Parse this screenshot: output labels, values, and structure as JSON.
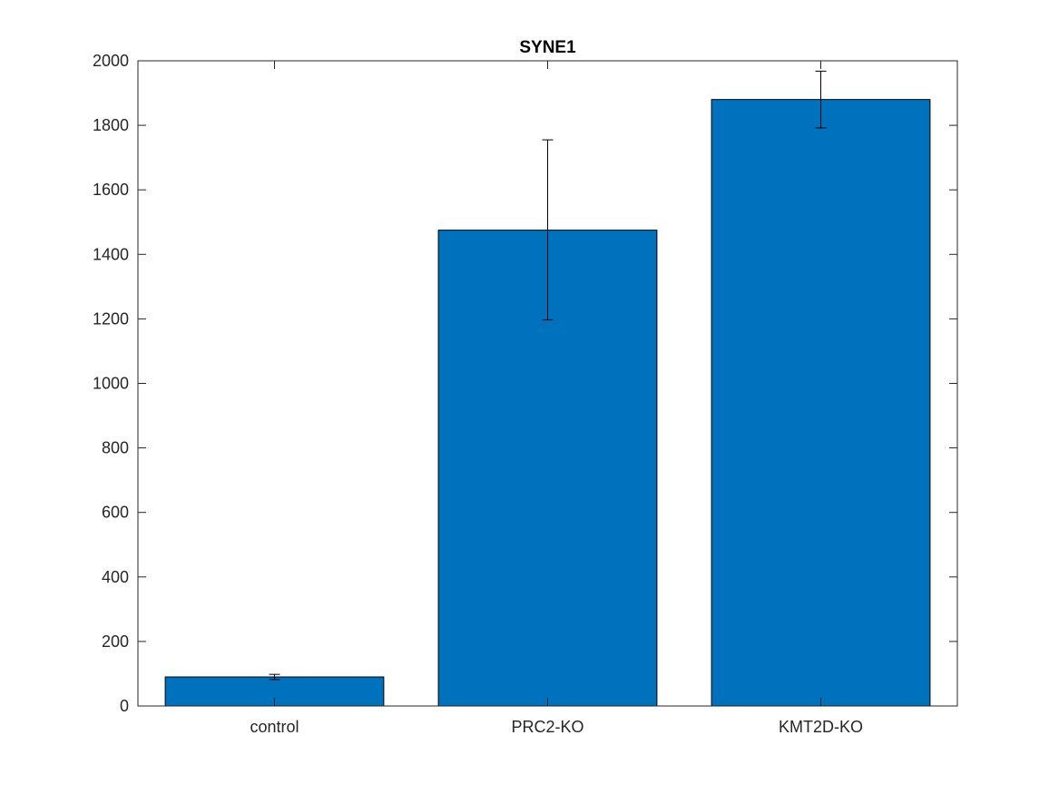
{
  "chart_data": {
    "type": "bar",
    "title": "SYNE1",
    "xlabel": "",
    "ylabel": "",
    "categories": [
      "control",
      "PRC2-KO",
      "KMT2D-KO"
    ],
    "values": [
      90,
      1475,
      1880
    ],
    "error_low": [
      82,
      1197,
      1792
    ],
    "error_high": [
      98,
      1755,
      1968
    ],
    "ylim": [
      0,
      2000
    ],
    "yticks": [
      0,
      200,
      400,
      600,
      800,
      1000,
      1200,
      1400,
      1600,
      1800,
      2000
    ],
    "ytick_labels": [
      "0",
      "200",
      "400",
      "600",
      "800",
      "1000",
      "1200",
      "1400",
      "1600",
      "1800",
      "2000"
    ],
    "grid": false,
    "bar_color": "#0072BD",
    "errorbar_color": "#000000"
  }
}
